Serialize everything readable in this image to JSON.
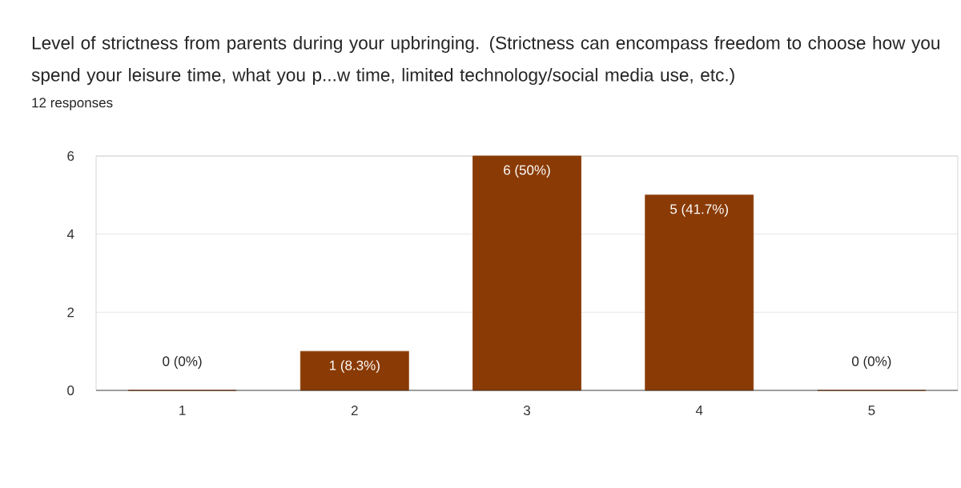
{
  "chart_data": {
    "type": "bar",
    "title": "Level of strictness from parents during your upbringing. (Strictness can encompass freedom to choose how you spend your leisure time, what you p...w time, limited technology/social media use, etc.)",
    "subtitle": "12 responses",
    "categories": [
      "1",
      "2",
      "3",
      "4",
      "5"
    ],
    "values": [
      0,
      1,
      6,
      5,
      0
    ],
    "value_labels": [
      "0 (0%)",
      "1 (8.3%)",
      "6 (50%)",
      "5 (41.7%)",
      "0 (0%)"
    ],
    "color": "#8a3b05",
    "ylim": [
      0,
      6
    ],
    "yticks": [
      0,
      2,
      4,
      6
    ],
    "grid": "y"
  }
}
